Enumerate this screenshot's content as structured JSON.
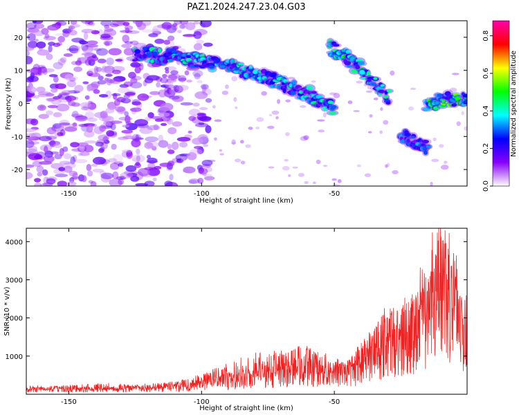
{
  "figure_title": "PAZ1.2024.247.23.04.G03",
  "chart_data": [
    {
      "type": "heatmap",
      "title": "",
      "xlabel": "Height of straight line (km)",
      "ylabel": "Frequency (Hz)",
      "xlim": [
        -166,
        0
      ],
      "ylim": [
        -25,
        25
      ],
      "xticks": [
        -150,
        -100,
        -50
      ],
      "yticks": [
        -20,
        -10,
        0,
        10,
        20
      ],
      "colorbar": {
        "label": "Normalized spectral amplitude",
        "range": [
          0.0,
          0.88
        ],
        "ticks": [
          0.0,
          0.2,
          0.4,
          0.6,
          0.8
        ],
        "colormap": [
          "#ffffff",
          "#8800ff",
          "#0000ff",
          "#00ffff",
          "#00ff00",
          "#ffff00",
          "#ff0000",
          "#ff00aa"
        ]
      },
      "ridges": [
        {
          "points": [
            [
              -125,
              15
            ],
            [
              -110,
              14
            ],
            [
              -100,
              13
            ],
            [
              -90,
              11
            ],
            [
              -80,
              9
            ],
            [
              -70,
              6
            ],
            [
              -60,
              3
            ],
            [
              -50,
              -2
            ]
          ],
          "peak_amplitude": 0.45
        },
        {
          "points": [
            [
              -52,
              17
            ],
            [
              -45,
              14
            ],
            [
              -40,
              10
            ],
            [
              -35,
              6
            ],
            [
              -30,
              2
            ]
          ],
          "peak_amplitude": 0.5
        },
        {
          "points": [
            [
              -25,
              -9
            ],
            [
              -20,
              -11
            ],
            [
              -15,
              -14
            ]
          ],
          "peak_amplitude": 0.35
        },
        {
          "points": [
            [
              -15,
              0
            ],
            [
              -8,
              1
            ],
            [
              0,
              1
            ]
          ],
          "peak_amplitude": 0.6
        }
      ],
      "noise_region_x": [
        -166,
        -100
      ],
      "grid": false,
      "legend": "right"
    },
    {
      "type": "line",
      "title": "",
      "xlabel": "Height of straight line (km)",
      "ylabel": "SNR (10 * v/v)",
      "xlim": [
        -166,
        0
      ],
      "ylim": [
        0,
        4350
      ],
      "xticks": [
        -150,
        -100,
        -50
      ],
      "yticks": [
        1000,
        2000,
        3000,
        4000
      ],
      "series": [
        {
          "color": "#ee2222",
          "x": [
            -166,
            -155,
            -145,
            -135,
            -125,
            -115,
            -110,
            -105,
            -100,
            -95,
            -90,
            -85,
            -80,
            -75,
            -70,
            -65,
            -60,
            -55,
            -50,
            -45,
            -40,
            -35,
            -32,
            -28,
            -25,
            -22,
            -20,
            -18,
            -15,
            -13,
            -10,
            -8,
            -6,
            -4,
            -2,
            0
          ],
          "y": [
            160,
            160,
            170,
            170,
            180,
            200,
            240,
            300,
            350,
            420,
            480,
            520,
            560,
            640,
            700,
            800,
            860,
            760,
            650,
            700,
            900,
            1250,
            1500,
            1700,
            1600,
            1900,
            2000,
            2300,
            2600,
            3100,
            3800,
            3400,
            2900,
            2600,
            2100,
            2400
          ],
          "peak_amplitude": [
            170,
            200,
            260,
            300,
            220,
            280,
            360,
            420,
            520,
            700,
            820,
            1000,
            1100,
            1200,
            1150,
            1250,
            1300,
            1000,
            800,
            900,
            1300,
            1750,
            2100,
            2200,
            2300,
            2500,
            2700,
            3000,
            3400,
            4300,
            4200,
            4100,
            3500,
            3000,
            2600,
            2500
          ]
        }
      ],
      "grid": false,
      "legend": "none"
    }
  ]
}
